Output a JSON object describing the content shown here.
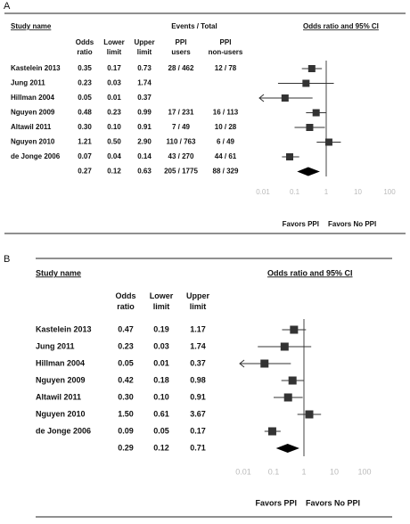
{
  "chart_data": [
    {
      "type": "forest",
      "panel": "A",
      "study_header": "Study name",
      "events_header": "Events / Total",
      "plot_header": "Odds ratio and 95% CI",
      "col_headers": [
        "Odds ratio",
        "Lower limit",
        "Upper limit",
        "PPI users",
        "PPI non-users"
      ],
      "studies": [
        "Kastelein 2013",
        "Jung 2011",
        "Hillman 2004",
        "Nguyen 2009",
        "Altawil 2011",
        "Nguyen 2010",
        "de Jonge 2006",
        null
      ],
      "or": [
        0.35,
        0.23,
        0.05,
        0.48,
        0.3,
        1.21,
        0.07,
        0.27
      ],
      "or_labels": [
        "0.35",
        "0.23",
        "0.05",
        "0.48",
        "0.30",
        "1.21",
        "0.07",
        "0.27"
      ],
      "lower": [
        0.17,
        0.03,
        0.01,
        0.23,
        0.1,
        0.5,
        0.04,
        0.12
      ],
      "lower_labels": [
        "0.17",
        "0.03",
        "0.01",
        "0.23",
        "0.10",
        "0.50",
        "0.04",
        "0.12"
      ],
      "upper": [
        0.73,
        1.74,
        0.37,
        0.99,
        0.91,
        2.9,
        0.14,
        0.63
      ],
      "upper_labels": [
        "0.73",
        "1.74",
        "0.37",
        "0.99",
        "0.91",
        "2.90",
        "0.14",
        "0.63"
      ],
      "ppi_events": [
        "28 / 462",
        null,
        null,
        "17 / 231",
        "7 / 49",
        "110 / 763",
        "43 / 270",
        "205 / 1775"
      ],
      "non_ppi_events": [
        "12 / 78",
        null,
        null,
        "16 / 113",
        "10 / 28",
        "6 / 49",
        "44 / 61",
        "88 / 329"
      ],
      "xlim": [
        0.01,
        100
      ],
      "xticks": [
        0.01,
        0.1,
        1,
        10,
        100
      ],
      "log_scale": true,
      "favors_left": "Favors PPI",
      "favors_right": "Favors No PPI",
      "color": "#333333"
    },
    {
      "type": "forest",
      "panel": "B",
      "study_header": "Study name",
      "plot_header": "Odds ratio and 95% CI",
      "col_headers": [
        "Odds ratio",
        "Lower limit",
        "Upper limit"
      ],
      "studies": [
        "Kastelein 2013",
        "Jung 2011",
        "Hillman 2004",
        "Nguyen 2009",
        "Altawil 2011",
        "Nguyen 2010",
        "de Jonge 2006",
        null
      ],
      "or": [
        0.47,
        0.23,
        0.05,
        0.42,
        0.3,
        1.5,
        0.09,
        0.29
      ],
      "or_labels": [
        "0.47",
        "0.23",
        "0.05",
        "0.42",
        "0.30",
        "1.50",
        "0.09",
        "0.29"
      ],
      "lower": [
        0.19,
        0.03,
        0.01,
        0.18,
        0.1,
        0.61,
        0.05,
        0.12
      ],
      "lower_labels": [
        "0.19",
        "0.03",
        "0.01",
        "0.18",
        "0.10",
        "0.61",
        "0.05",
        "0.12"
      ],
      "upper": [
        1.17,
        1.74,
        0.37,
        0.98,
        0.91,
        3.67,
        0.17,
        0.71
      ],
      "upper_labels": [
        "1.17",
        "1.74",
        "0.37",
        "0.98",
        "0.91",
        "3.67",
        "0.17",
        "0.71"
      ],
      "xlim": [
        0.01,
        100
      ],
      "xticks": [
        0.01,
        0.1,
        1,
        10,
        100
      ],
      "log_scale": true,
      "favors_left": "Favors PPI",
      "favors_right": "Favors No PPI",
      "color": "#333333"
    }
  ]
}
